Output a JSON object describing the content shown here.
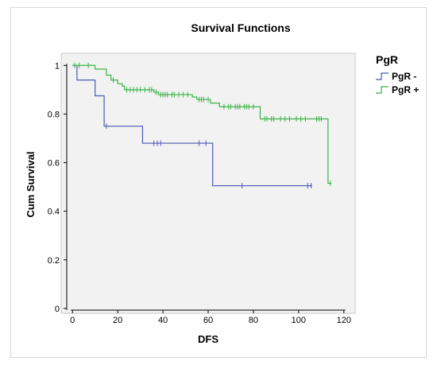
{
  "chart_data": {
    "type": "line",
    "subtype": "kaplan-meier step",
    "title": "Survival Functions",
    "xlabel": "DFS",
    "ylabel": "Cum Survival",
    "xlim": [
      -5,
      125
    ],
    "ylim": [
      -0.02,
      1.05
    ],
    "xticks": [
      0,
      20,
      40,
      60,
      80,
      100,
      120
    ],
    "yticks": [
      0,
      0.2,
      0.4,
      0.6,
      0.8,
      1
    ],
    "ytick_labels": [
      "0",
      "0.2",
      "0.4",
      "0.6",
      "0.8",
      "1"
    ],
    "grid": false,
    "legend": {
      "title": "PgR",
      "position": "right"
    },
    "series": [
      {
        "name": "PgR -",
        "color": "#4a5ab0",
        "steps": [
          [
            0,
            1.0
          ],
          [
            2,
            0.94
          ],
          [
            10,
            0.875
          ],
          [
            14,
            0.75
          ],
          [
            31,
            0.68
          ],
          [
            62,
            0.505
          ],
          [
            106,
            0.505
          ]
        ],
        "censored": [
          [
            15,
            0.75
          ],
          [
            36,
            0.68
          ],
          [
            37.5,
            0.68
          ],
          [
            39,
            0.68
          ],
          [
            56,
            0.68
          ],
          [
            59,
            0.68
          ],
          [
            75,
            0.505
          ],
          [
            104,
            0.505
          ],
          [
            105.5,
            0.505
          ]
        ]
      },
      {
        "name": "PgR +",
        "color": "#3cb24a",
        "steps": [
          [
            0,
            1.0
          ],
          [
            10,
            0.985
          ],
          [
            15,
            0.96
          ],
          [
            17,
            0.94
          ],
          [
            20,
            0.925
          ],
          [
            22,
            0.915
          ],
          [
            23,
            0.9
          ],
          [
            36,
            0.89
          ],
          [
            38,
            0.88
          ],
          [
            53,
            0.87
          ],
          [
            55,
            0.86
          ],
          [
            61,
            0.845
          ],
          [
            65,
            0.83
          ],
          [
            83,
            0.78
          ],
          [
            113,
            0.515
          ],
          [
            114.5,
            0.515
          ]
        ],
        "censored": [
          [
            1,
            1.0
          ],
          [
            3,
            1.0
          ],
          [
            7,
            1.0
          ],
          [
            18,
            0.94
          ],
          [
            24,
            0.9
          ],
          [
            25.5,
            0.9
          ],
          [
            27,
            0.9
          ],
          [
            28.5,
            0.9
          ],
          [
            30,
            0.9
          ],
          [
            32,
            0.9
          ],
          [
            34,
            0.9
          ],
          [
            35,
            0.9
          ],
          [
            37,
            0.89
          ],
          [
            39,
            0.88
          ],
          [
            40,
            0.88
          ],
          [
            41,
            0.88
          ],
          [
            42,
            0.88
          ],
          [
            44,
            0.88
          ],
          [
            45,
            0.88
          ],
          [
            47,
            0.88
          ],
          [
            49,
            0.88
          ],
          [
            51,
            0.88
          ],
          [
            56,
            0.86
          ],
          [
            57,
            0.86
          ],
          [
            58,
            0.86
          ],
          [
            60,
            0.86
          ],
          [
            67,
            0.83
          ],
          [
            69,
            0.83
          ],
          [
            70,
            0.83
          ],
          [
            72,
            0.83
          ],
          [
            73,
            0.83
          ],
          [
            74,
            0.83
          ],
          [
            76,
            0.83
          ],
          [
            77,
            0.83
          ],
          [
            78,
            0.83
          ],
          [
            80,
            0.83
          ],
          [
            85,
            0.78
          ],
          [
            86,
            0.78
          ],
          [
            88,
            0.78
          ],
          [
            89,
            0.78
          ],
          [
            92,
            0.78
          ],
          [
            94,
            0.78
          ],
          [
            96,
            0.78
          ],
          [
            99,
            0.78
          ],
          [
            101,
            0.78
          ],
          [
            103,
            0.78
          ],
          [
            108,
            0.78
          ],
          [
            109,
            0.78
          ],
          [
            110,
            0.78
          ],
          [
            114,
            0.515
          ]
        ]
      }
    ]
  }
}
